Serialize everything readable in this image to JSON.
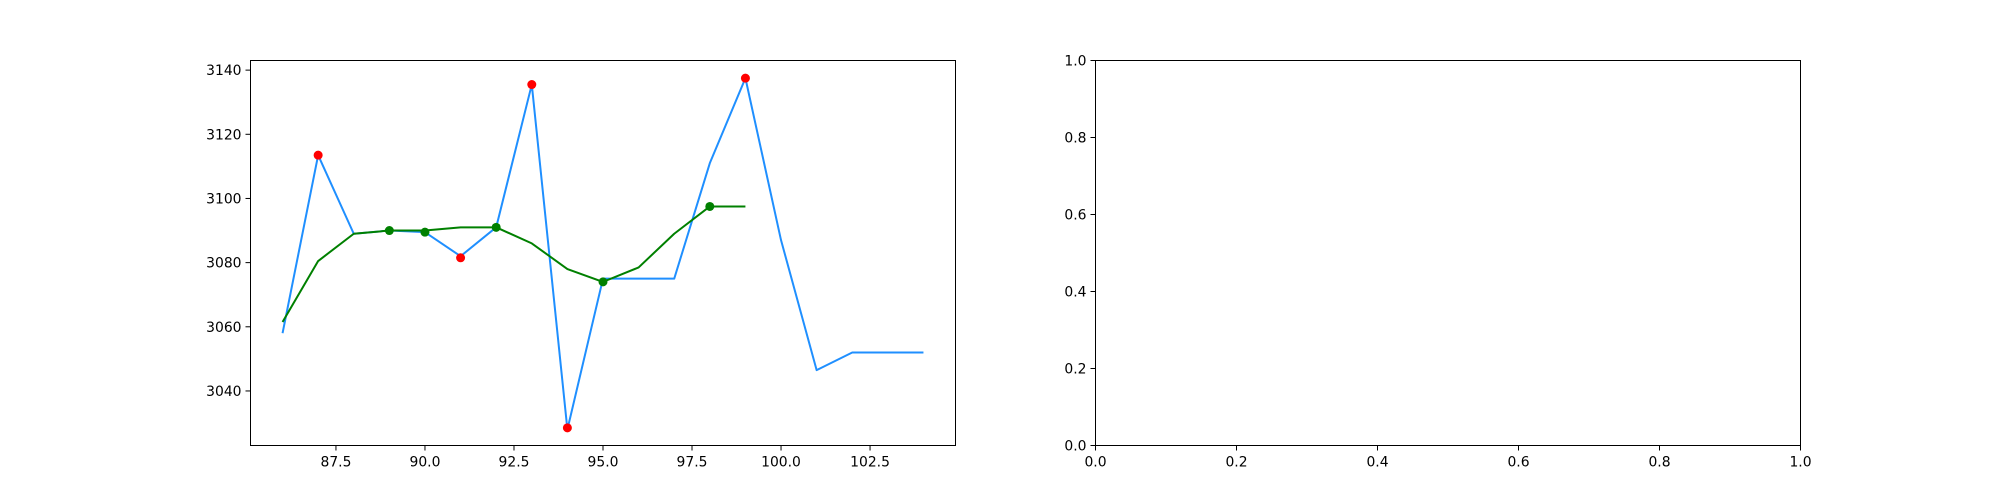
{
  "chart_data": [
    {
      "type": "line",
      "title": "",
      "xlabel": "",
      "ylabel": "",
      "xlim": [
        85.1,
        104.9
      ],
      "ylim": [
        3023.0,
        3143.0
      ],
      "xticks": [
        87.5,
        90.0,
        92.5,
        95.0,
        97.5,
        100.0,
        102.5
      ],
      "xtick_labels": [
        "87.5",
        "90.0",
        "92.5",
        "95.0",
        "97.5",
        "100.0",
        "102.5"
      ],
      "yticks": [
        3040,
        3060,
        3080,
        3100,
        3120,
        3140
      ],
      "ytick_labels": [
        "3040",
        "3060",
        "3080",
        "3100",
        "3120",
        "3140"
      ],
      "grid": false,
      "series": [
        {
          "kind": "line",
          "color": "#1f8fff",
          "x": [
            86,
            87,
            88,
            89,
            90,
            91,
            92,
            93,
            94,
            95,
            96,
            97,
            98,
            99,
            100,
            101,
            102,
            103,
            104
          ],
          "y": [
            3058,
            3113.5,
            3089,
            3090,
            3089.5,
            3082,
            3091,
            3135.5,
            3028,
            3075,
            3075,
            3075,
            3111,
            3137.5,
            3087,
            3046.5,
            3052,
            3052,
            3052
          ]
        },
        {
          "kind": "line",
          "color": "#008000",
          "x": [
            86,
            87,
            88,
            89,
            90,
            91,
            92,
            93,
            94,
            95,
            96,
            97,
            98,
            99
          ],
          "y": [
            3061.5,
            3080.5,
            3089,
            3090,
            3090,
            3091,
            3091,
            3086,
            3078,
            3074,
            3078.5,
            3089,
            3097.5,
            3097.5
          ]
        },
        {
          "kind": "scatter",
          "color": "#ff0000",
          "x": [
            87,
            91,
            93,
            94,
            99
          ],
          "y": [
            3113.5,
            3081.5,
            3135.5,
            3028.5,
            3137.5
          ]
        },
        {
          "kind": "scatter",
          "color": "#008000",
          "x": [
            89,
            90,
            92,
            95,
            98
          ],
          "y": [
            3090,
            3089.5,
            3091,
            3074,
            3097.5
          ]
        }
      ]
    },
    {
      "type": "line",
      "title": "",
      "xlabel": "",
      "ylabel": "",
      "xlim": [
        0.0,
        1.0
      ],
      "ylim": [
        0.0,
        1.0
      ],
      "xticks": [
        0.0,
        0.2,
        0.4,
        0.6,
        0.8,
        1.0
      ],
      "xtick_labels": [
        "0.0",
        "0.2",
        "0.4",
        "0.6",
        "0.8",
        "1.0"
      ],
      "yticks": [
        0.0,
        0.2,
        0.4,
        0.6,
        0.8,
        1.0
      ],
      "ytick_labels": [
        "0.0",
        "0.2",
        "0.4",
        "0.6",
        "0.8",
        "1.0"
      ],
      "grid": false,
      "series": []
    }
  ]
}
